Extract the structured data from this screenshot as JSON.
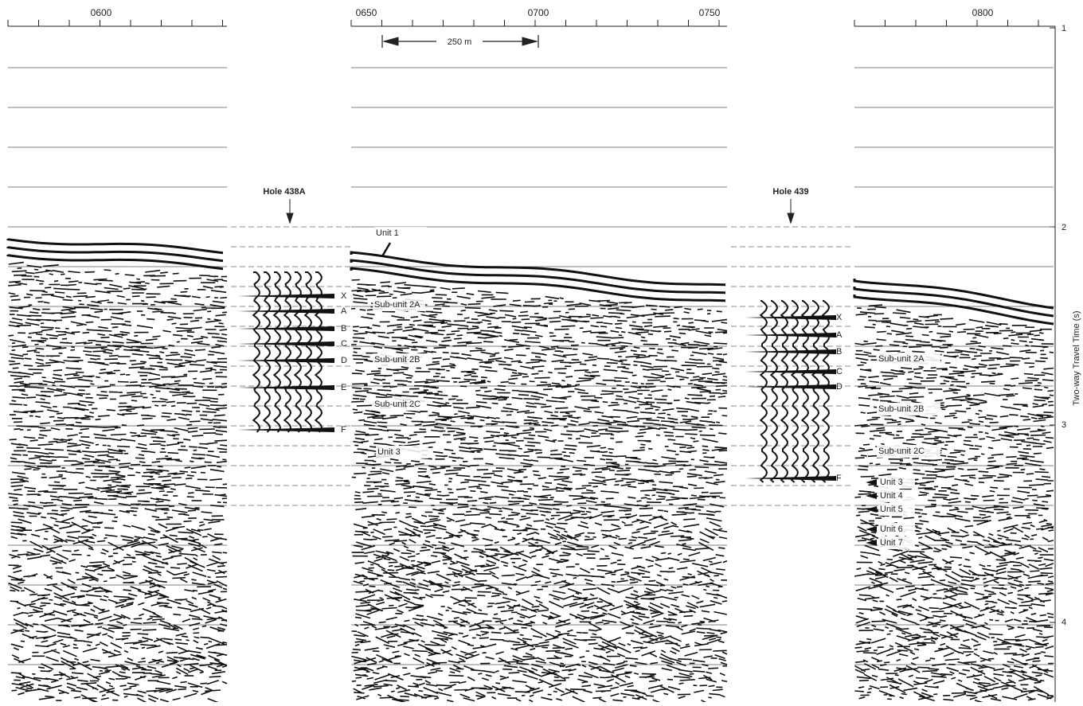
{
  "figure": {
    "time_labels": [
      "0600",
      "0650",
      "0700",
      "0750",
      "0800"
    ],
    "scale_bar": "250 m",
    "holes": [
      {
        "label": "Hole 438A",
        "reflectors": [
          "X",
          "A",
          "B",
          "C",
          "D",
          "E",
          "F"
        ]
      },
      {
        "label": "Hole 439",
        "reflectors": [
          "X",
          "A",
          "B",
          "C",
          "D",
          "F"
        ]
      }
    ],
    "center_units": [
      "Unit 1",
      "Sub-unit 2A",
      "Sub-unit 2B",
      "Sub-unit 2C",
      "Unit 3"
    ],
    "right_units": [
      "Sub-unit 2A",
      "Sub-unit 2B",
      "Sub-unit 2C",
      "Unit 3",
      "Unit 4",
      "Unit 5",
      "Unit 6",
      "Unit 7"
    ],
    "y_axis": {
      "title": "Two-way Travel Time (s)",
      "ticks": [
        "1",
        "2",
        "3",
        "4"
      ]
    }
  }
}
